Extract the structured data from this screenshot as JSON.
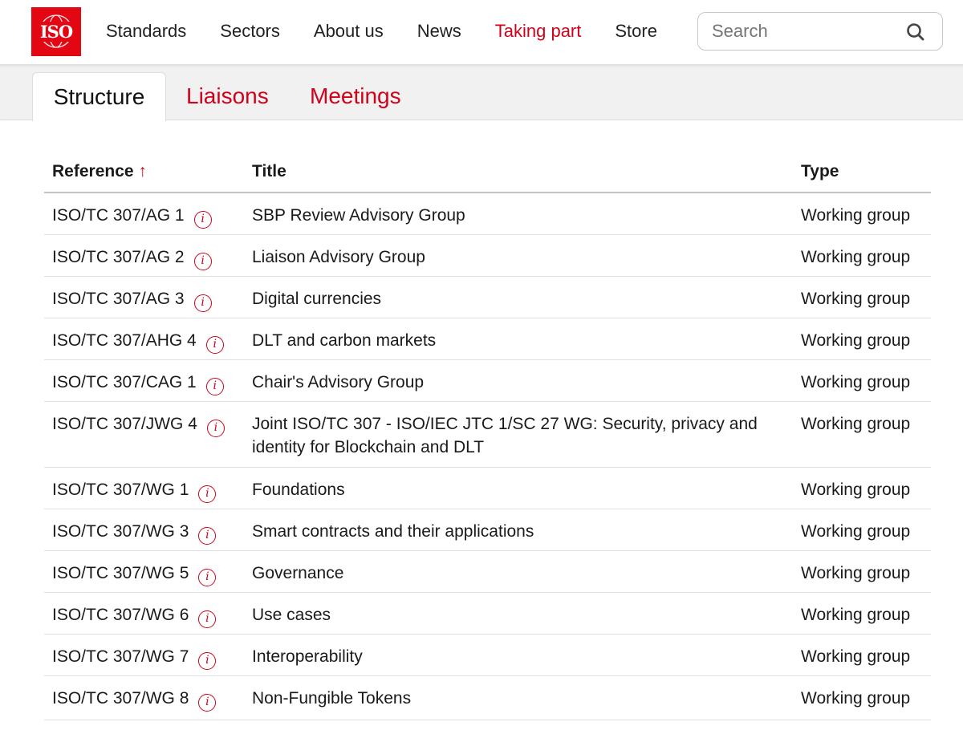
{
  "header": {
    "logo_text": "ISO",
    "nav": [
      {
        "label": "Standards",
        "active": false
      },
      {
        "label": "Sectors",
        "active": false
      },
      {
        "label": "About us",
        "active": false
      },
      {
        "label": "News",
        "active": false
      },
      {
        "label": "Taking part",
        "active": true
      },
      {
        "label": "Store",
        "active": false
      }
    ],
    "search": {
      "placeholder": "Search",
      "value": ""
    }
  },
  "tabs": [
    {
      "label": "Structure",
      "selected": true
    },
    {
      "label": "Liaisons",
      "selected": false
    },
    {
      "label": "Meetings",
      "selected": false
    }
  ],
  "table": {
    "columns": {
      "reference": "Reference",
      "sort_indicator": "↑",
      "title": "Title",
      "type": "Type"
    },
    "rows": [
      {
        "reference": "ISO/TC 307/AG 1",
        "title": "SBP Review Advisory Group",
        "type": "Working group"
      },
      {
        "reference": "ISO/TC 307/AG 2",
        "title": "Liaison Advisory Group",
        "type": "Working group"
      },
      {
        "reference": "ISO/TC 307/AG 3",
        "title": "Digital currencies",
        "type": "Working group"
      },
      {
        "reference": "ISO/TC 307/AHG 4",
        "title": "DLT and carbon markets",
        "type": "Working group"
      },
      {
        "reference": "ISO/TC 307/CAG 1",
        "title": "Chair's Advisory Group",
        "type": "Working group"
      },
      {
        "reference": "ISO/TC 307/JWG 4",
        "title": "Joint ISO/TC 307 - ISO/IEC JTC 1/SC 27 WG: Security, privacy and identity for Blockchain and DLT",
        "type": "Working group"
      },
      {
        "reference": "ISO/TC 307/WG 1",
        "title": "Foundations",
        "type": "Working group"
      },
      {
        "reference": "ISO/TC 307/WG 3",
        "title": "Smart contracts and their applications",
        "type": "Working group"
      },
      {
        "reference": "ISO/TC 307/WG 5",
        "title": "Governance",
        "type": "Working group"
      },
      {
        "reference": "ISO/TC 307/WG 6",
        "title": "Use cases",
        "type": "Working group"
      },
      {
        "reference": "ISO/TC 307/WG 7",
        "title": "Interoperability",
        "type": "Working group"
      },
      {
        "reference": "ISO/TC 307/WG 8",
        "title": "Non-Fungible Tokens",
        "type": "Working group"
      }
    ]
  },
  "colors": {
    "brand": "#e30613",
    "accent": "#d0021b"
  }
}
